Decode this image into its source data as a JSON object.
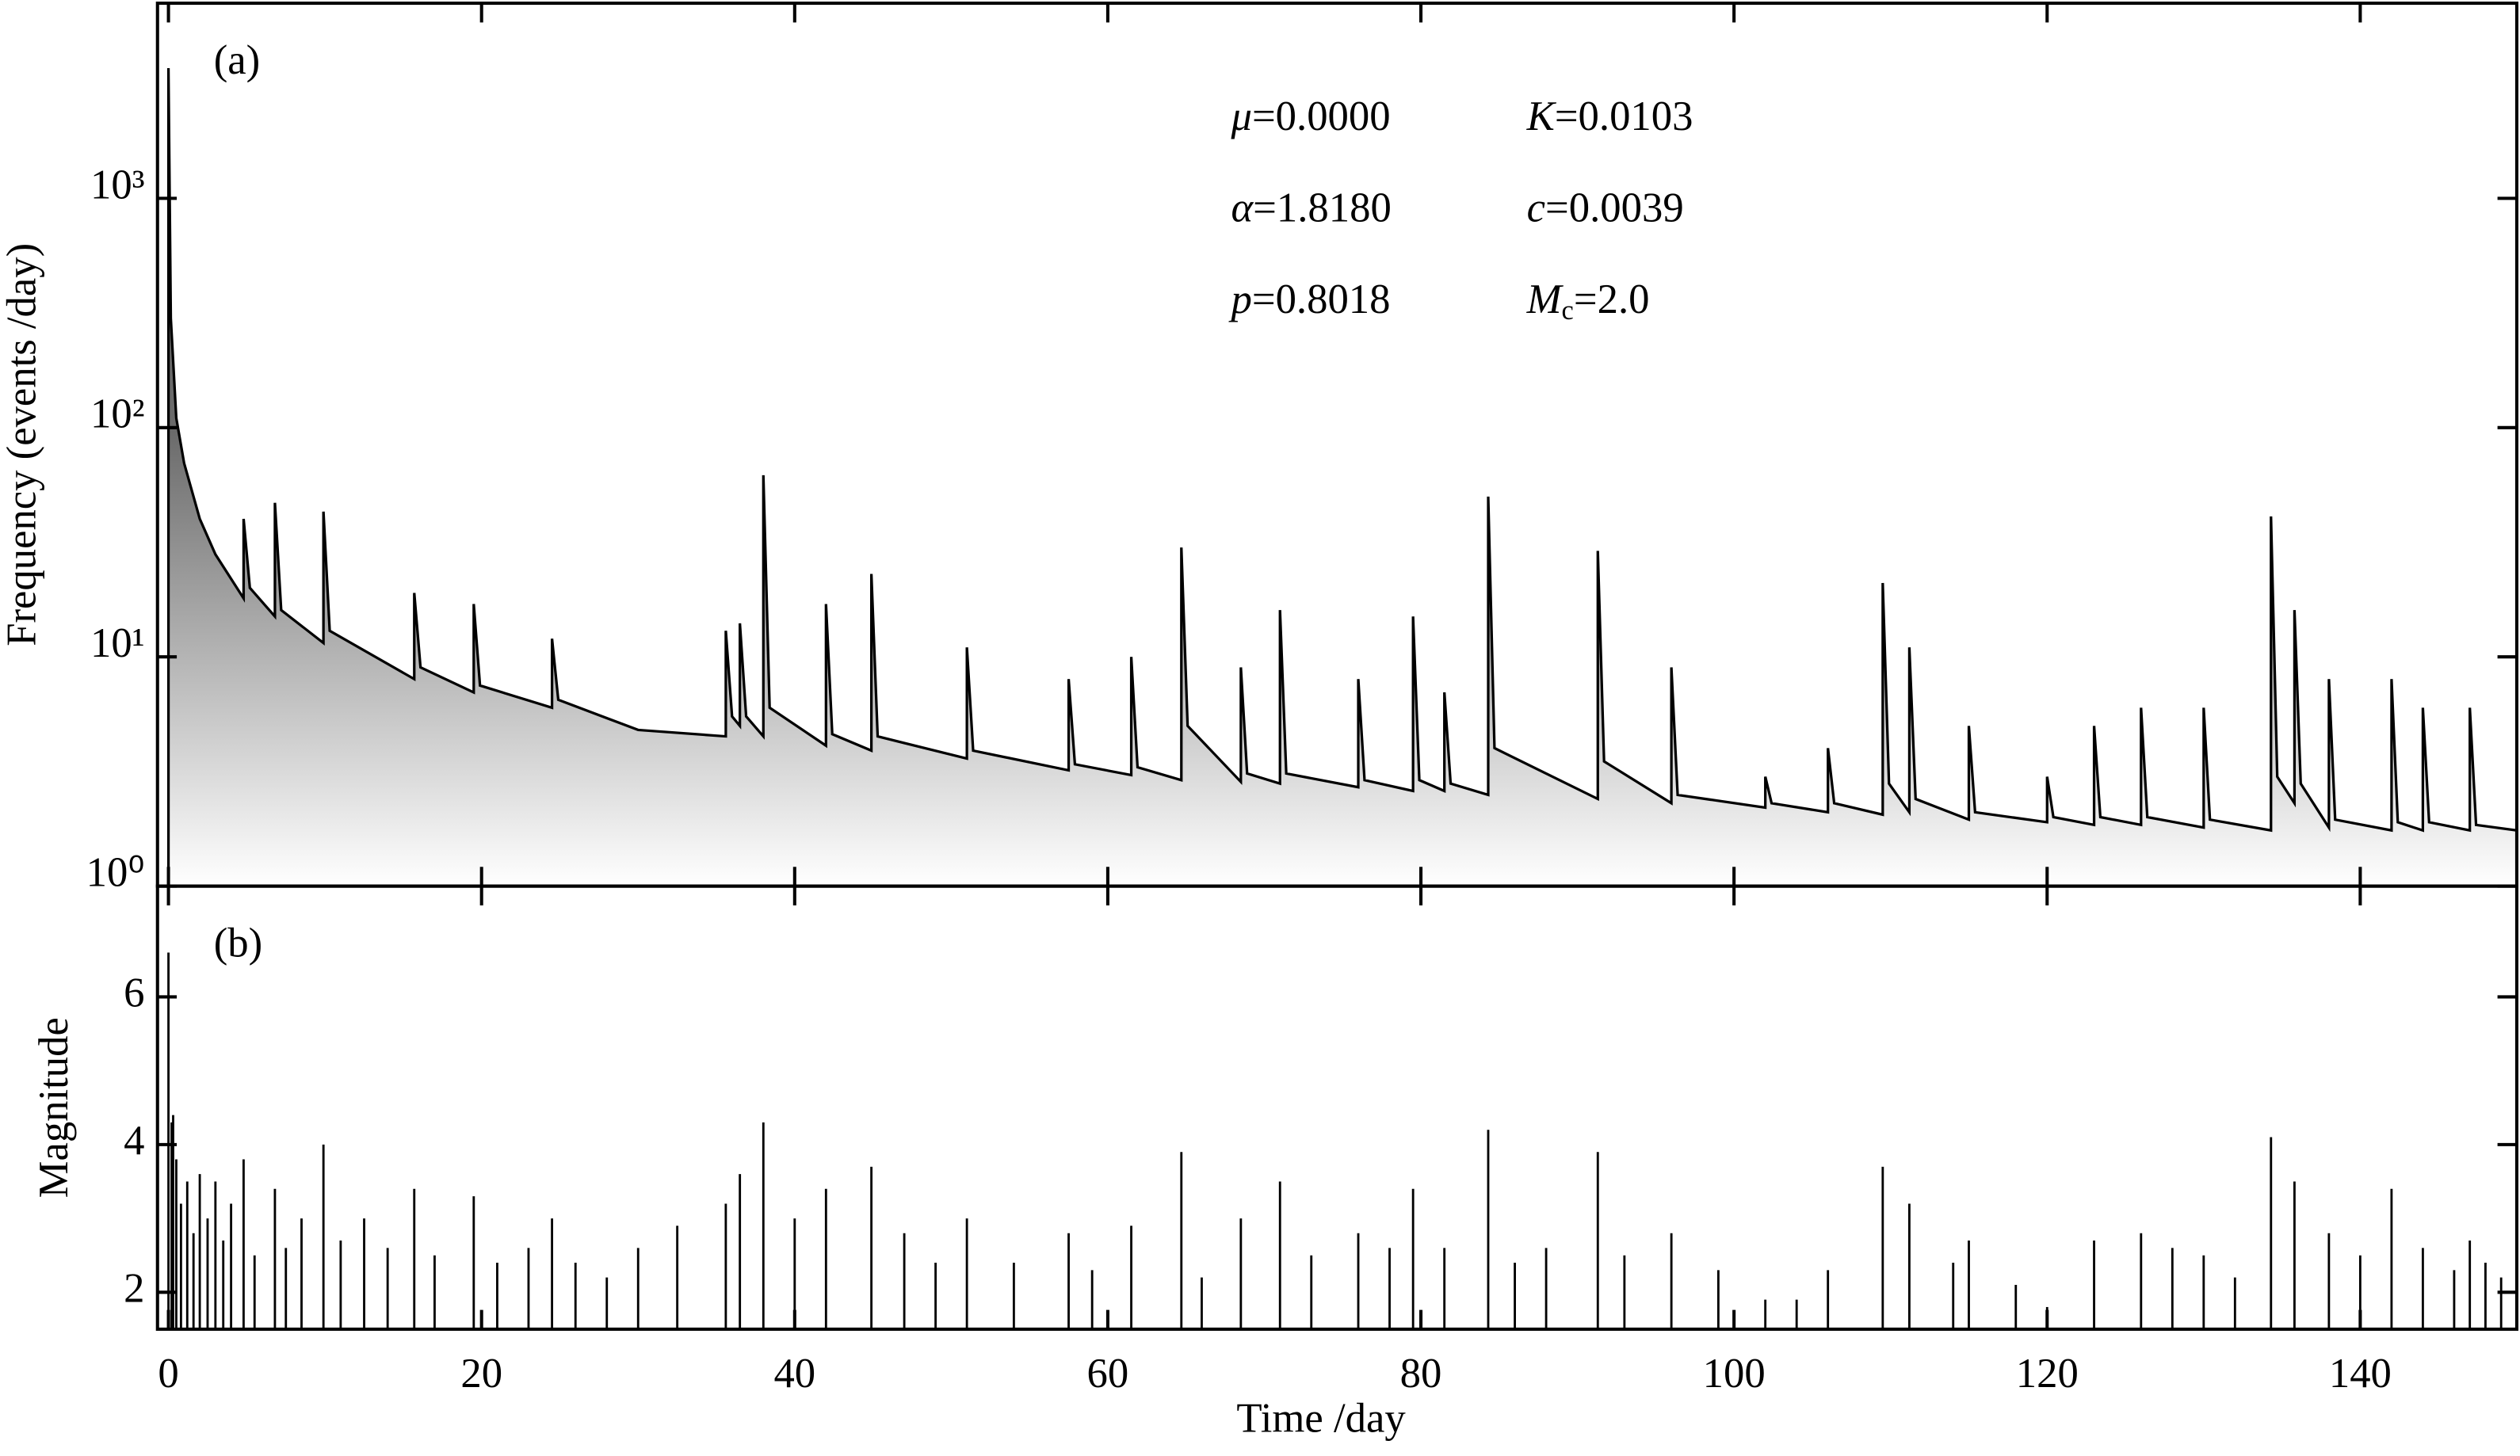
{
  "chart_data": [
    {
      "type": "line",
      "label": "(a)",
      "y_label": "Frequency (events /day)",
      "log_y": true,
      "color": "#000000",
      "fill_top": "#6a6a6a",
      "fill_bottom": "#ffffff",
      "xlim": [
        -0.7,
        150
      ],
      "xticks": [
        0,
        20,
        40,
        60,
        80,
        100,
        120,
        140
      ],
      "ylim": [
        1,
        7100
      ],
      "yticks": [
        {
          "value": 1,
          "label": "10⁰"
        },
        {
          "value": 10,
          "label": "10¹"
        },
        {
          "value": 100,
          "label": "10²"
        },
        {
          "value": 1000,
          "label": "10³"
        }
      ],
      "params": [
        {
          "symbol": "μ",
          "text": "=0.0000"
        },
        {
          "symbol": "K",
          "text": "=0.0103"
        },
        {
          "symbol": "α",
          "text": "=1.8180"
        },
        {
          "symbol": "c",
          "text": "=0.0039"
        },
        {
          "symbol": "p",
          "text": "=0.8018"
        },
        {
          "symbol": "M",
          "subscript": "c",
          "text": "=2.0"
        }
      ],
      "x": [
        0,
        0,
        0.15,
        0.5,
        1,
        2,
        3,
        4.8,
        4.8,
        5.2,
        6.8,
        6.8,
        7.2,
        9.9,
        9.9,
        10.3,
        15.7,
        15.7,
        16.1,
        19.5,
        19.5,
        19.9,
        24.5,
        24.5,
        24.9,
        30,
        35.6,
        35.6,
        36,
        36.5,
        36.5,
        36.9,
        38,
        38,
        38.4,
        42,
        42,
        42.4,
        44.9,
        44.9,
        45.3,
        51,
        51,
        51.4,
        57.5,
        57.5,
        57.9,
        61.5,
        61.5,
        61.9,
        64.7,
        64.7,
        65.1,
        68.5,
        68.5,
        68.9,
        71,
        71,
        71.4,
        76,
        76,
        76.4,
        79.5,
        79.5,
        79.9,
        81.5,
        81.5,
        81.9,
        84.3,
        84.3,
        84.7,
        91.3,
        91.3,
        91.7,
        96,
        96,
        96.4,
        102,
        102,
        102.4,
        106,
        106,
        106.4,
        109.5,
        109.5,
        109.9,
        111.2,
        111.2,
        111.6,
        115,
        115,
        115.4,
        120,
        120,
        120.4,
        123,
        123,
        123.4,
        126,
        126,
        126.4,
        130,
        130,
        130.4,
        134.3,
        134.3,
        134.7,
        135.8,
        135.8,
        136.2,
        138,
        138,
        138.4,
        142,
        142,
        142.4,
        144,
        144,
        144.4,
        147,
        147,
        147.4,
        150
      ],
      "values": [
        1,
        3700,
        300,
        110,
        70,
        40,
        28,
        18,
        40,
        20,
        15,
        47,
        16,
        11.5,
        43,
        13,
        8,
        19,
        9,
        7,
        17,
        7.5,
        6,
        12,
        6.5,
        4.8,
        4.5,
        13,
        5.5,
        5,
        14,
        5.5,
        4.5,
        62,
        6,
        4.1,
        17,
        4.6,
        3.9,
        23,
        4.5,
        3.6,
        11,
        3.9,
        3.2,
        8,
        3.4,
        3.05,
        10,
        3.3,
        2.9,
        30,
        5,
        2.85,
        9,
        3.1,
        2.8,
        16,
        3.1,
        2.7,
        8,
        2.9,
        2.6,
        15,
        2.9,
        2.6,
        7,
        2.8,
        2.5,
        50,
        4,
        2.4,
        29,
        3.5,
        2.3,
        9,
        2.5,
        2.2,
        3,
        2.3,
        2.1,
        4,
        2.3,
        2.05,
        21,
        2.8,
        2.1,
        11,
        2.4,
        1.95,
        5,
        2.1,
        1.9,
        3,
        2,
        1.85,
        5,
        2,
        1.85,
        6,
        2,
        1.8,
        6,
        1.95,
        1.75,
        41,
        3,
        2.3,
        16,
        2.8,
        1.8,
        8,
        1.95,
        1.75,
        8,
        1.9,
        1.75,
        6,
        1.9,
        1.75,
        6,
        1.85,
        1.75
      ]
    },
    {
      "type": "stem",
      "label": "(b)",
      "y_label": "Magnitude",
      "x_label": "Time /day",
      "color": "#000000",
      "xlim": [
        -0.7,
        150
      ],
      "xticks": [
        0,
        20,
        40,
        60,
        80,
        100,
        120,
        140
      ],
      "ylim": [
        1.5,
        7.5
      ],
      "yticks": [
        2,
        4,
        6
      ],
      "x": [
        0,
        0.2,
        0.3,
        0.5,
        0.8,
        1.2,
        1.6,
        2,
        2.5,
        3,
        3.5,
        4,
        4.8,
        5.5,
        6.8,
        7.5,
        8.5,
        9.9,
        11,
        12.5,
        14,
        15.7,
        17,
        19.5,
        21,
        23,
        24.5,
        26,
        28,
        30,
        32.5,
        35.6,
        36.5,
        38,
        40,
        42,
        44.9,
        47,
        49,
        51,
        54,
        57.5,
        59,
        61.5,
        64.7,
        66,
        68.5,
        71,
        73,
        76,
        78,
        79.5,
        81.5,
        84.3,
        86,
        88,
        91.3,
        93,
        96,
        99,
        102,
        104,
        106,
        109.5,
        111.2,
        114,
        115,
        118,
        120,
        123,
        126,
        128,
        130,
        132,
        134.3,
        135.8,
        138,
        140,
        142,
        144,
        146,
        147,
        148,
        149
      ],
      "values": [
        6.6,
        4.3,
        4.4,
        3.8,
        3.2,
        3.5,
        2.8,
        3.6,
        3.0,
        3.5,
        2.7,
        3.2,
        3.8,
        2.5,
        3.4,
        2.6,
        3.0,
        4.0,
        2.7,
        3.0,
        2.6,
        3.4,
        2.5,
        3.3,
        2.4,
        2.6,
        3.0,
        2.4,
        2.2,
        2.6,
        2.9,
        3.2,
        3.6,
        4.3,
        3.0,
        3.4,
        3.7,
        2.8,
        2.4,
        3.0,
        2.4,
        2.8,
        2.3,
        2.9,
        3.9,
        2.2,
        3.0,
        3.5,
        2.5,
        2.8,
        2.6,
        3.4,
        2.6,
        4.2,
        2.4,
        2.6,
        3.9,
        2.5,
        2.8,
        2.3,
        1.9,
        1.9,
        2.3,
        3.7,
        3.2,
        2.4,
        2.7,
        2.1,
        1.8,
        2.7,
        2.8,
        2.6,
        2.5,
        2.2,
        4.1,
        3.5,
        2.8,
        2.5,
        3.4,
        2.6,
        2.3,
        2.7,
        2.4,
        2.2
      ]
    }
  ]
}
